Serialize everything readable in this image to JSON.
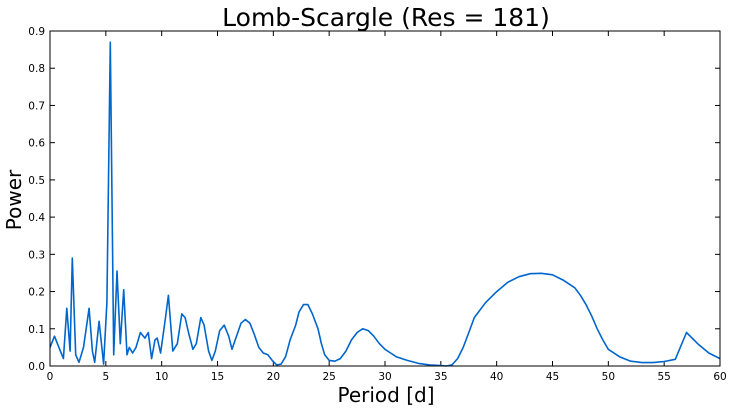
{
  "chart_data": {
    "type": "line",
    "title": "Lomb-Scargle (Res = 181)",
    "xlabel": "Period [d]",
    "ylabel": "Power",
    "xlim": [
      0,
      60
    ],
    "ylim": [
      0,
      0.9
    ],
    "xticks": [
      "0",
      "5",
      "10",
      "15",
      "20",
      "25",
      "30",
      "35",
      "40",
      "45",
      "50",
      "55",
      "60"
    ],
    "yticks": [
      "0.0",
      "0.1",
      "0.2",
      "0.3",
      "0.4",
      "0.5",
      "0.6",
      "0.7",
      "0.8",
      "0.9"
    ],
    "grid": false,
    "line_color": "#0066cc",
    "series": [
      {
        "x": [
          0.0,
          0.4,
          0.8,
          1.2,
          1.5,
          1.8,
          2.0,
          2.3,
          2.6,
          3.0,
          3.5,
          3.8,
          4.0,
          4.4,
          4.8,
          5.1,
          5.4,
          5.7,
          6.0,
          6.3,
          6.6,
          6.9,
          7.1,
          7.4,
          7.7,
          8.1,
          8.5,
          8.8,
          9.1,
          9.4,
          9.6,
          9.9,
          10.3,
          10.6,
          11.0,
          11.4,
          11.8,
          12.1,
          12.4,
          12.8,
          13.1,
          13.5,
          13.8,
          14.2,
          14.5,
          14.8,
          15.2,
          15.6,
          16.0,
          16.3,
          16.7,
          17.1,
          17.5,
          17.9,
          18.3,
          18.7,
          19.1,
          19.5,
          19.9,
          20.3,
          20.7,
          21.1,
          21.5,
          22.0,
          22.3,
          22.7,
          23.1,
          23.5,
          24.0,
          24.3,
          24.6,
          25.0,
          25.5,
          26.0,
          26.5,
          27.0,
          27.5,
          28.0,
          28.5,
          29.0,
          29.5,
          30.0,
          30.5,
          31.0,
          32.0,
          33.0,
          34.0,
          35.0,
          35.5,
          36.0,
          36.5,
          37.0,
          37.5,
          38.0,
          39.0,
          40.0,
          41.0,
          42.0,
          43.0,
          44.0,
          45.0,
          46.0,
          47.0,
          47.5,
          48.0,
          48.5,
          49.0,
          49.5,
          50.0,
          51.0,
          52.0,
          53.0,
          54.0,
          55.0,
          56.0,
          57.0,
          58.0,
          59.0,
          60.0
        ],
        "y": [
          0.05,
          0.08,
          0.05,
          0.02,
          0.155,
          0.04,
          0.29,
          0.03,
          0.01,
          0.05,
          0.155,
          0.04,
          0.01,
          0.12,
          0.005,
          0.17,
          0.87,
          0.03,
          0.255,
          0.06,
          0.205,
          0.03,
          0.05,
          0.035,
          0.05,
          0.09,
          0.075,
          0.09,
          0.02,
          0.07,
          0.075,
          0.035,
          0.12,
          0.19,
          0.04,
          0.06,
          0.14,
          0.13,
          0.09,
          0.045,
          0.06,
          0.13,
          0.11,
          0.04,
          0.015,
          0.04,
          0.095,
          0.11,
          0.08,
          0.045,
          0.08,
          0.115,
          0.125,
          0.115,
          0.085,
          0.05,
          0.035,
          0.03,
          0.015,
          0.003,
          0.005,
          0.025,
          0.07,
          0.11,
          0.145,
          0.165,
          0.165,
          0.14,
          0.1,
          0.06,
          0.03,
          0.015,
          0.013,
          0.02,
          0.04,
          0.07,
          0.09,
          0.1,
          0.095,
          0.08,
          0.06,
          0.045,
          0.035,
          0.025,
          0.015,
          0.007,
          0.003,
          0.001,
          0.0,
          0.003,
          0.02,
          0.05,
          0.09,
          0.13,
          0.17,
          0.2,
          0.225,
          0.24,
          0.248,
          0.249,
          0.245,
          0.23,
          0.21,
          0.19,
          0.165,
          0.135,
          0.1,
          0.07,
          0.045,
          0.025,
          0.013,
          0.009,
          0.009,
          0.012,
          0.018,
          0.09,
          0.06,
          0.035,
          0.02
        ]
      }
    ]
  }
}
